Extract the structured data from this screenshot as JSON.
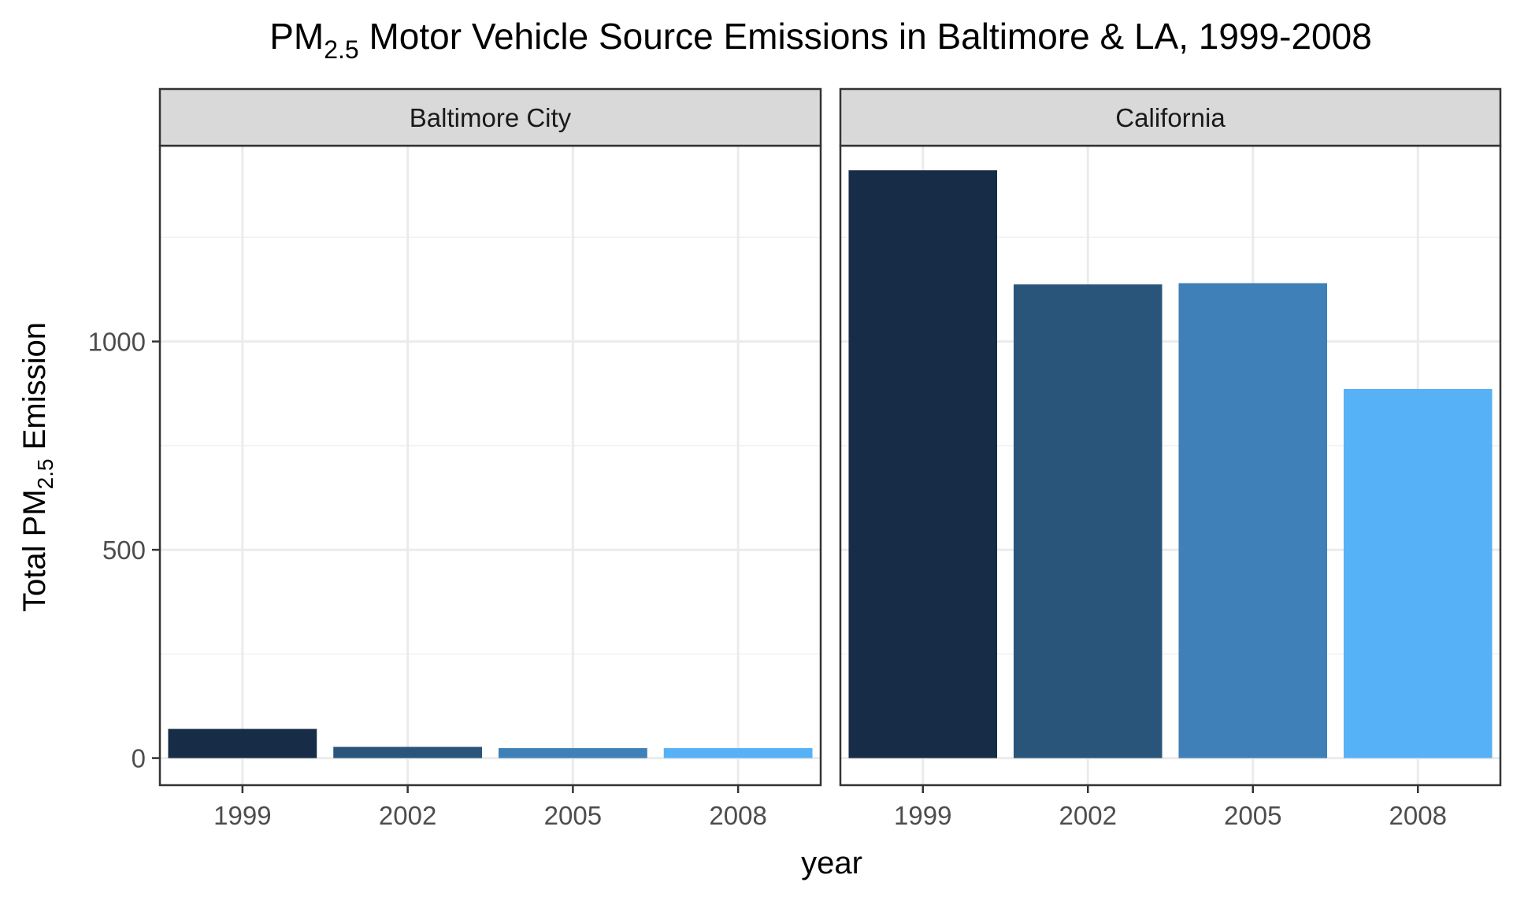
{
  "chart_data": {
    "type": "bar",
    "title": {
      "prefix": "PM",
      "subscript": "2.5",
      "suffix": " Motor Vehicle Source Emissions in Baltimore & LA, 1999-2008"
    },
    "xlabel": "year",
    "ylabel": {
      "prefix": "Total PM",
      "subscript": "2.5",
      "suffix": " Emission"
    },
    "categories": [
      "1999",
      "2002",
      "2005",
      "2008"
    ],
    "bar_colors": [
      "#172C46",
      "#29557B",
      "#3E80B7",
      "#56B1F7"
    ],
    "y_ticks": [
      0,
      500,
      1000
    ],
    "ylim": [
      -65,
      1470
    ],
    "grid": true,
    "legend": "none",
    "panels": [
      {
        "label": "Baltimore City",
        "values": [
          70,
          27,
          24,
          24
        ]
      },
      {
        "label": "California",
        "values": [
          1411,
          1137,
          1140,
          886
        ]
      }
    ]
  }
}
